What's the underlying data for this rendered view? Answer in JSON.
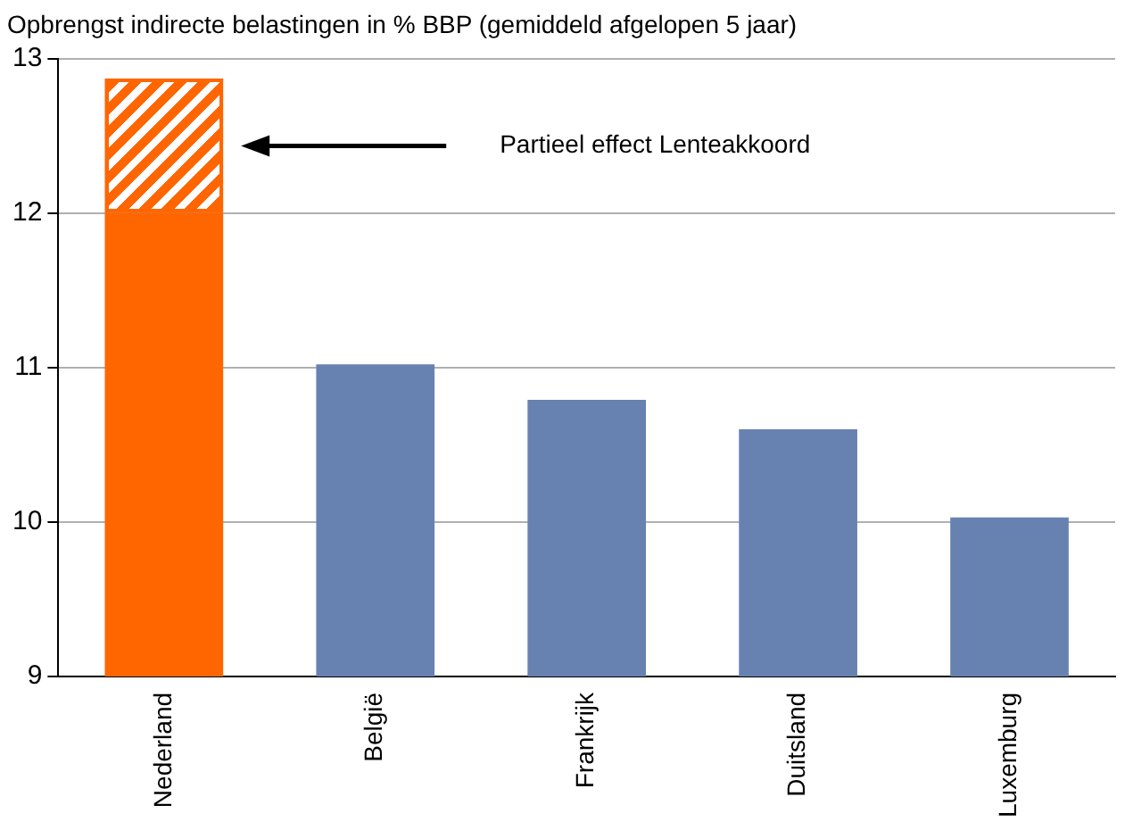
{
  "chart_data": {
    "type": "bar",
    "title": "Opbrengst indirecte belastingen in % BBP (gemiddeld afgelopen 5 jaar)",
    "categories": [
      "Nederland",
      "België",
      "Frankrijk",
      "Duitsland",
      "Luxemburg"
    ],
    "series": [
      {
        "colors": [
          "#ff6600",
          "#6782b0",
          "#6782b0",
          "#6782b0",
          "#6782b0"
        ],
        "values": [
          12,
          11.02,
          10.79,
          10.6,
          10.03
        ]
      },
      {
        "color": "#ff6600",
        "base": [
          12,
          null,
          null,
          null,
          null
        ],
        "values": [
          0.87,
          null,
          null,
          null,
          null
        ]
      }
    ],
    "ylim": [
      9,
      13
    ],
    "yticks": [
      9,
      10,
      11,
      12,
      13
    ],
    "grid": "y",
    "annotations": [
      "Partieel effect Lenteakkoord"
    ]
  }
}
